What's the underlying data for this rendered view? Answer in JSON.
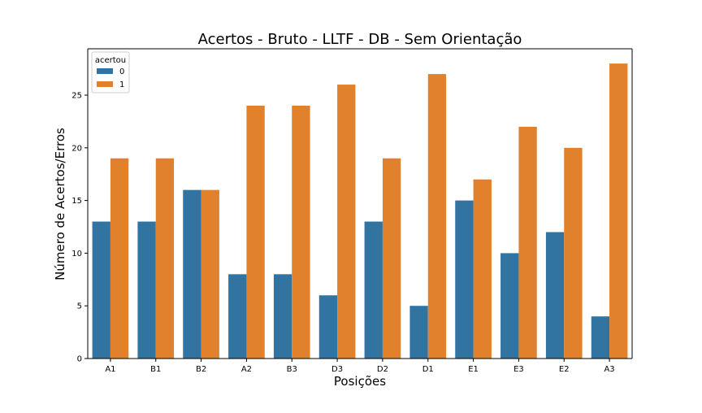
{
  "chart_data": {
    "type": "bar",
    "title": "Acertos - Bruto - LLTF - DB - Sem Orientação",
    "xlabel": "Posições",
    "ylabel": "Número de Acertos/Erros",
    "categories": [
      "A1",
      "B1",
      "B2",
      "A2",
      "B3",
      "D3",
      "D2",
      "D1",
      "E1",
      "E3",
      "E2",
      "A3"
    ],
    "series": [
      {
        "name": "0",
        "color": "#3274a1",
        "values": [
          13,
          13,
          16,
          8,
          8,
          6,
          13,
          5,
          15,
          10,
          12,
          4
        ]
      },
      {
        "name": "1",
        "color": "#e1812c",
        "values": [
          19,
          19,
          16,
          24,
          24,
          26,
          19,
          27,
          17,
          22,
          20,
          28
        ]
      }
    ],
    "ylim": [
      0,
      29.4
    ],
    "yticks": [
      0,
      5,
      10,
      15,
      20,
      25
    ],
    "grid": false,
    "legend": {
      "title": "acertou",
      "position": "top-left"
    }
  }
}
